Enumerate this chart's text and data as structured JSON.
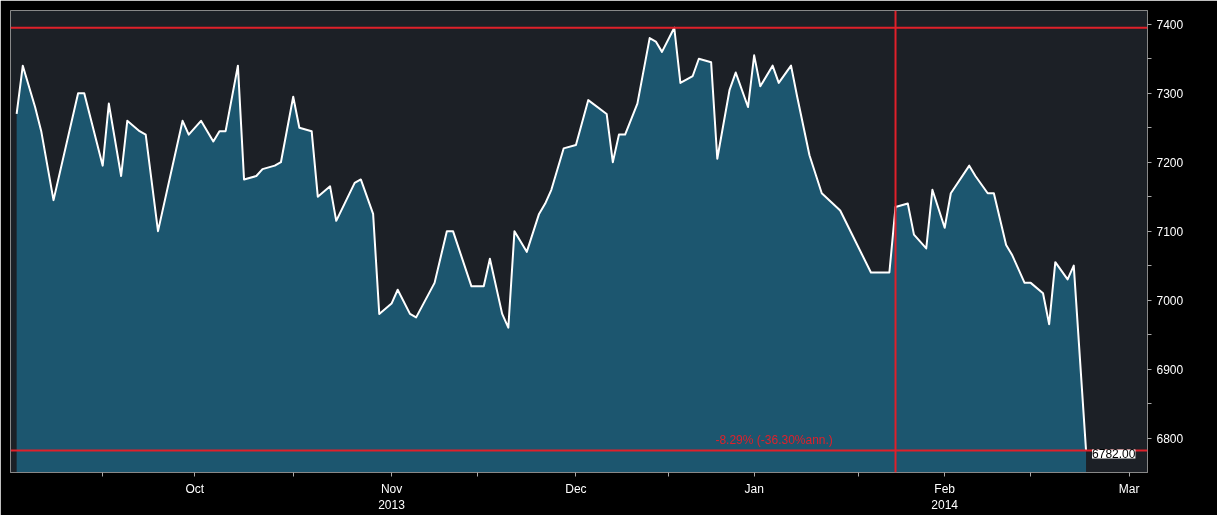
{
  "chart_data": {
    "type": "area",
    "x": [
      "2013-09-17",
      "2013-09-18",
      "2013-09-20",
      "2013-09-21",
      "2013-09-23",
      "2013-09-27",
      "2013-09-28",
      "2013-10-01",
      "2013-10-02",
      "2013-10-04",
      "2013-10-05",
      "2013-10-07",
      "2013-10-08",
      "2013-10-10",
      "2013-10-14",
      "2013-10-15",
      "2013-10-17",
      "2013-10-19",
      "2013-10-20",
      "2013-10-21",
      "2013-10-23",
      "2013-10-24",
      "2013-10-26",
      "2013-10-27",
      "2013-10-29",
      "2013-10-30",
      "2013-11-01",
      "2013-11-02",
      "2013-11-04",
      "2013-11-05",
      "2013-11-07",
      "2013-11-08",
      "2013-11-11",
      "2013-11-12",
      "2013-11-14",
      "2013-11-15",
      "2013-11-17",
      "2013-11-18",
      "2013-11-20",
      "2013-11-21",
      "2013-11-24",
      "2013-11-26",
      "2013-11-27",
      "2013-11-30",
      "2013-12-02",
      "2013-12-03",
      "2013-12-05",
      "2013-12-06",
      "2013-12-07",
      "2013-12-09",
      "2013-12-11",
      "2013-12-12",
      "2013-12-13",
      "2013-12-15",
      "2013-12-17",
      "2013-12-19",
      "2013-12-22",
      "2013-12-23",
      "2013-12-24",
      "2013-12-25",
      "2013-12-27",
      "2013-12-29",
      "2013-12-30",
      "2013-12-31",
      "2014-01-02",
      "2014-01-03",
      "2014-01-05",
      "2014-01-06",
      "2014-01-08",
      "2014-01-09",
      "2014-01-11",
      "2014-01-12",
      "2014-01-14",
      "2014-01-15",
      "2014-01-16",
      "2014-01-18",
      "2014-01-19",
      "2014-01-21",
      "2014-01-22",
      "2014-01-24",
      "2014-01-26",
      "2014-01-29",
      "2014-02-03",
      "2014-02-04",
      "2014-02-06",
      "2014-02-07",
      "2014-02-09",
      "2014-02-10",
      "2014-02-12",
      "2014-02-13",
      "2014-02-15",
      "2014-02-16",
      "2014-02-19",
      "2014-02-20",
      "2014-02-22",
      "2014-02-23",
      "2014-02-25",
      "2014-02-26",
      "2014-02-28",
      "2014-03-01",
      "2014-03-03",
      "2014-03-04",
      "2014-03-05",
      "2014-03-07",
      "2014-03-08",
      "2014-03-10"
    ],
    "series": [
      {
        "color": "#ffffff",
        "values": [
          7270,
          7340,
          7280,
          7245,
          7145,
          7300,
          7300,
          7195,
          7285,
          7180,
          7260,
          7245,
          7240,
          7100,
          7260,
          7240,
          7260,
          7230,
          7245,
          7245,
          7340,
          7175,
          7180,
          7190,
          7195,
          7200,
          7295,
          7250,
          7245,
          7150,
          7165,
          7115,
          7170,
          7175,
          7125,
          6980,
          6995,
          7015,
          6980,
          6975,
          7025,
          7100,
          7100,
          7020,
          7020,
          7060,
          6980,
          6960,
          7100,
          7070,
          7125,
          7140,
          7160,
          7220,
          7225,
          7290,
          7270,
          7200,
          7240,
          7240,
          7285,
          7380,
          7375,
          7360,
          7395,
          7315,
          7325,
          7350,
          7345,
          7205,
          7305,
          7330,
          7280,
          7355,
          7310,
          7340,
          7315,
          7340,
          7295,
          7210,
          7155,
          7130,
          7040,
          7040,
          7040,
          7135,
          7140,
          7095,
          7075,
          7160,
          7105,
          7155,
          7195,
          7180,
          7155,
          7155,
          7080,
          7065,
          7025,
          7025,
          7010,
          6965,
          7055,
          7030,
          7050,
          6782
        ]
      }
    ],
    "ylim": [
      6750,
      7420
    ],
    "yticks": [
      6800,
      {
        "value": 6850,
        "label": null
      },
      6900,
      {
        "value": 6950,
        "label": null
      },
      7000,
      {
        "value": 7050,
        "label": null
      },
      7100,
      {
        "value": 7150,
        "label": null
      },
      7200,
      {
        "value": 7250,
        "label": null
      },
      7300,
      {
        "value": 7350,
        "label": null
      },
      7400
    ],
    "xlim": [
      "2013-09-16",
      "2014-03-20"
    ],
    "xticks": [
      {
        "value": "2013-10-01",
        "label": null
      },
      {
        "value": "2013-10-16",
        "label": "Oct"
      },
      {
        "value": "2013-11-01",
        "label": null
      },
      {
        "value": "2013-11-17",
        "label": "Nov\n2013"
      },
      {
        "value": "2013-12-01",
        "label": null
      },
      {
        "value": "2013-12-17",
        "label": "Dec"
      },
      {
        "value": "2014-01-01",
        "label": null
      },
      {
        "value": "2014-01-15",
        "label": "Jan"
      },
      {
        "value": "2014-02-01",
        "label": null
      },
      {
        "value": "2014-02-15",
        "label": "Feb\n2014"
      },
      {
        "value": "2014-03-01",
        "label": null
      },
      {
        "value": "2014-03-17",
        "label": "Mar"
      }
    ],
    "ref_lines": [
      {
        "axis": "y",
        "value": 7395,
        "color": "#e0202a"
      },
      {
        "axis": "y",
        "value": 6782,
        "label": "-8.29% (-36.30%ann.)",
        "color": "#e0202a"
      },
      {
        "axis": "x",
        "value": "2014-02-07",
        "color": "#e0202a"
      }
    ],
    "annotations": [
      {
        "text": "6782.00",
        "x": "2014-03-10",
        "y": 6782
      }
    ],
    "grid": false
  }
}
